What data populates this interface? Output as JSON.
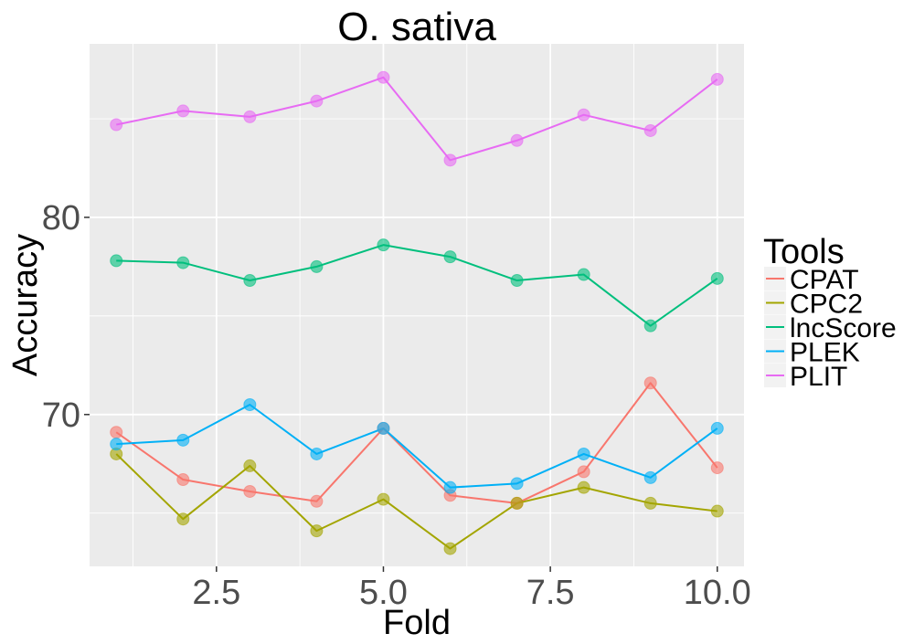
{
  "chart_data": {
    "type": "line",
    "title": "O. sativa",
    "xlabel": "Fold",
    "ylabel": "Accuracy",
    "xlim": [
      0.6,
      10.4
    ],
    "ylim": [
      62.3,
      88.8
    ],
    "x_ticks": [
      2.5,
      5.0,
      7.5,
      10.0
    ],
    "x_tick_labels": [
      "2.5",
      "5.0",
      "7.5",
      "10.0"
    ],
    "y_ticks": [
      70,
      80
    ],
    "y_tick_labels": [
      "70",
      "80"
    ],
    "grid": true,
    "legend": {
      "title": "Tools",
      "position": "right"
    },
    "x": [
      1,
      2,
      3,
      4,
      5,
      6,
      7,
      8,
      9,
      10
    ],
    "series": [
      {
        "name": "CPAT",
        "color": "#F8766D",
        "values": [
          69.1,
          66.7,
          66.1,
          65.6,
          69.3,
          65.9,
          65.5,
          67.1,
          71.6,
          67.3
        ]
      },
      {
        "name": "CPC2",
        "color": "#A3A500",
        "values": [
          68.0,
          64.7,
          67.4,
          64.1,
          65.7,
          63.2,
          65.5,
          66.3,
          65.5,
          65.1
        ]
      },
      {
        "name": "lncScore",
        "color": "#00BF7D",
        "values": [
          77.8,
          77.7,
          76.8,
          77.5,
          78.6,
          78.0,
          76.8,
          77.1,
          74.5,
          76.9
        ]
      },
      {
        "name": "PLEK",
        "color": "#00B0F6",
        "values": [
          68.5,
          68.7,
          70.5,
          68.0,
          69.3,
          66.3,
          66.5,
          68.0,
          66.8,
          69.3
        ]
      },
      {
        "name": "PLIT",
        "color": "#E76BF3",
        "values": [
          84.7,
          85.4,
          85.1,
          85.9,
          87.1,
          82.9,
          83.9,
          85.2,
          84.4,
          87.0
        ]
      }
    ]
  }
}
